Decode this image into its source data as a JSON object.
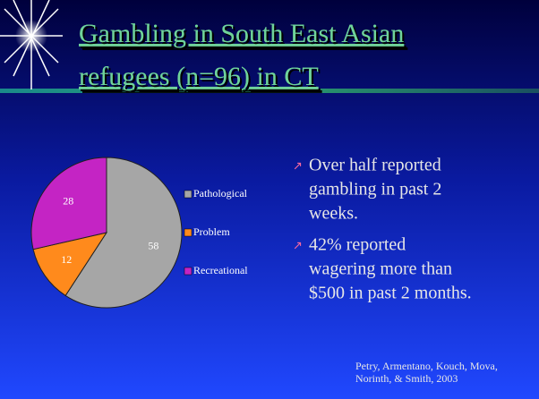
{
  "chart_data": {
    "type": "pie",
    "title_lines": [
      "Gambling in South East Asian",
      "refugees (n=96) in CT"
    ],
    "categories": [
      "Pathological",
      "Problem",
      "Recreational"
    ],
    "values": [
      58,
      12,
      28
    ],
    "colors": [
      "#a6a6a6",
      "#ff8a1c",
      "#c424c4"
    ],
    "legend": "right"
  },
  "slide": {
    "bullets": [
      [
        "Over half reported",
        "gambling in past 2",
        "weeks."
      ],
      [
        "42% reported",
        "wagering more than",
        "$500 in past 2 months."
      ]
    ],
    "citation": [
      "Petry, Armentano, Kouch, Mova,",
      "Norinth, & Smith, 2003"
    ]
  }
}
